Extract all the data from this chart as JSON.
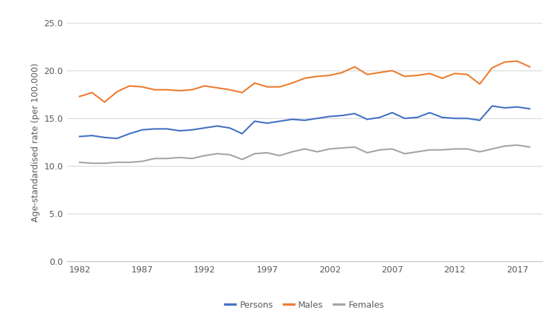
{
  "years": [
    1982,
    1983,
    1984,
    1985,
    1986,
    1987,
    1988,
    1989,
    1990,
    1991,
    1992,
    1993,
    1994,
    1995,
    1996,
    1997,
    1998,
    1999,
    2000,
    2001,
    2002,
    2003,
    2004,
    2005,
    2006,
    2007,
    2008,
    2009,
    2010,
    2011,
    2012,
    2013,
    2014,
    2015,
    2016,
    2017,
    2018
  ],
  "persons": [
    13.1,
    13.2,
    13.0,
    12.9,
    13.4,
    13.8,
    13.9,
    13.9,
    13.7,
    13.8,
    14.0,
    14.2,
    14.0,
    13.4,
    14.7,
    14.5,
    14.7,
    14.9,
    14.8,
    15.0,
    15.2,
    15.3,
    15.5,
    14.9,
    15.1,
    15.6,
    15.0,
    15.1,
    15.6,
    15.1,
    15.0,
    15.0,
    14.8,
    16.3,
    16.1,
    16.2,
    16.0
  ],
  "males": [
    17.3,
    17.7,
    16.7,
    17.8,
    18.4,
    18.3,
    18.0,
    18.0,
    17.9,
    18.0,
    18.4,
    18.2,
    18.0,
    17.7,
    18.7,
    18.3,
    18.3,
    18.7,
    19.2,
    19.4,
    19.5,
    19.8,
    20.4,
    19.6,
    19.8,
    20.0,
    19.4,
    19.5,
    19.7,
    19.2,
    19.7,
    19.6,
    18.6,
    20.3,
    20.9,
    21.0,
    20.4
  ],
  "females": [
    10.4,
    10.3,
    10.3,
    10.4,
    10.4,
    10.5,
    10.8,
    10.8,
    10.9,
    10.8,
    11.1,
    11.3,
    11.2,
    10.7,
    11.3,
    11.4,
    11.1,
    11.5,
    11.8,
    11.5,
    11.8,
    11.9,
    12.0,
    11.4,
    11.7,
    11.8,
    11.3,
    11.5,
    11.7,
    11.7,
    11.8,
    11.8,
    11.5,
    11.8,
    12.1,
    12.2,
    12.0
  ],
  "persons_color": "#4472c4",
  "males_color": "#ed7d31",
  "females_color": "#a5a5a5",
  "ylabel": "Age-standardised rate (per 100,000)",
  "xlim": [
    1981,
    2019
  ],
  "ylim": [
    0.0,
    25.0
  ],
  "yticks": [
    0.0,
    5.0,
    10.0,
    15.0,
    20.0,
    25.0
  ],
  "xticks": [
    1982,
    1987,
    1992,
    1997,
    2002,
    2007,
    2012,
    2017
  ],
  "legend_labels": [
    "Persons",
    "Males",
    "Females"
  ],
  "line_width": 1.6,
  "background_color": "#ffffff",
  "grid_color": "#d9d9d9",
  "tick_label_color": "#595959",
  "tick_label_size": 9,
  "ylabel_size": 9,
  "ylabel_color": "#595959"
}
